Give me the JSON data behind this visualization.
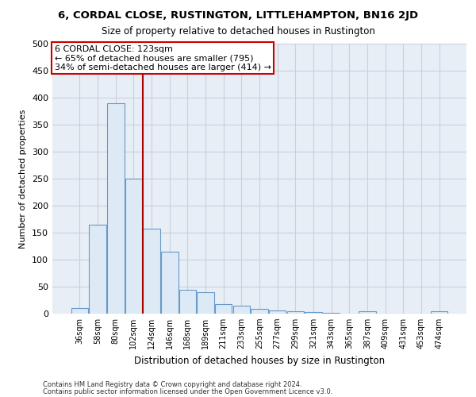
{
  "title": "6, CORDAL CLOSE, RUSTINGTON, LITTLEHAMPTON, BN16 2JD",
  "subtitle": "Size of property relative to detached houses in Rustington",
  "xlabel": "Distribution of detached houses by size in Rustington",
  "ylabel": "Number of detached properties",
  "footer_line1": "Contains HM Land Registry data © Crown copyright and database right 2024.",
  "footer_line2": "Contains public sector information licensed under the Open Government Licence v3.0.",
  "categories": [
    "36sqm",
    "58sqm",
    "80sqm",
    "102sqm",
    "124sqm",
    "146sqm",
    "168sqm",
    "189sqm",
    "211sqm",
    "233sqm",
    "255sqm",
    "277sqm",
    "299sqm",
    "321sqm",
    "343sqm",
    "365sqm",
    "387sqm",
    "409sqm",
    "431sqm",
    "453sqm",
    "474sqm"
  ],
  "values": [
    11,
    165,
    390,
    250,
    157,
    114,
    44,
    40,
    17,
    14,
    9,
    6,
    5,
    3,
    2,
    0,
    4,
    0,
    0,
    0,
    4
  ],
  "bar_color": "#ddeaf5",
  "bar_edge_color": "#6699cc",
  "grid_color": "#c8d0dc",
  "background_color": "#e8eef6",
  "fig_background_color": "#ffffff",
  "property_line_x": 3.5,
  "property_line_color": "#aa0000",
  "annotation_text_line1": "6 CORDAL CLOSE: 123sqm",
  "annotation_text_line2": "← 65% of detached houses are smaller (795)",
  "annotation_text_line3": "34% of semi-detached houses are larger (414) →",
  "annotation_box_color": "#ffffff",
  "annotation_box_edge_color": "#cc0000",
  "ylim": [
    0,
    500
  ],
  "yticks": [
    0,
    50,
    100,
    150,
    200,
    250,
    300,
    350,
    400,
    450,
    500
  ]
}
